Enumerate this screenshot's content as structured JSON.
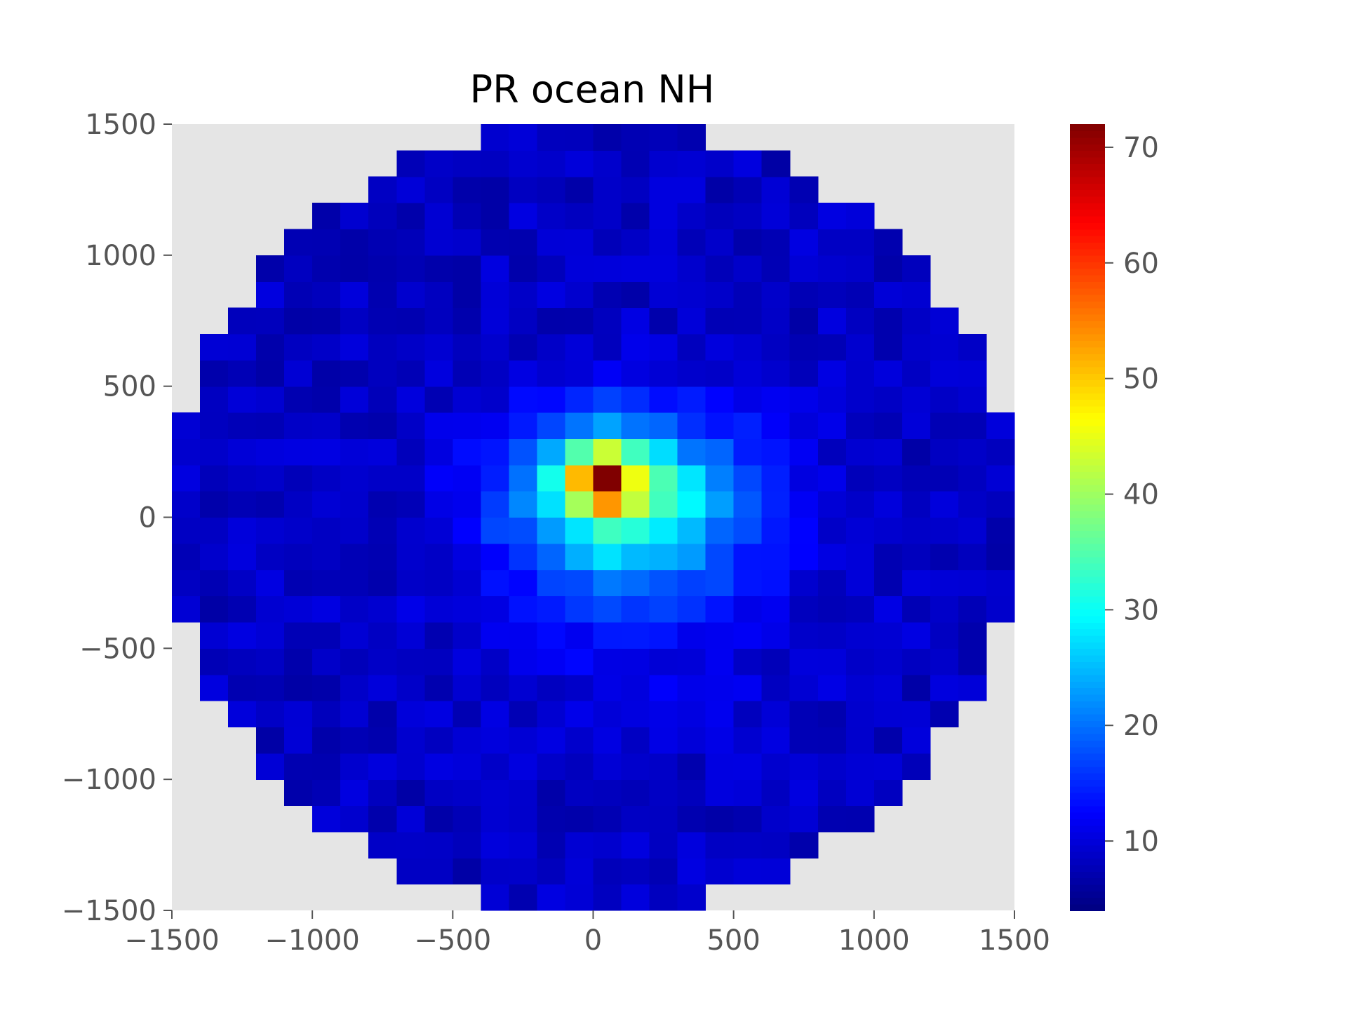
{
  "chart_data": {
    "type": "heatmap",
    "title": "PR ocean NH",
    "xlabel": "",
    "ylabel": "",
    "xlim": [
      -1500,
      1500
    ],
    "ylim": [
      -1500,
      1500
    ],
    "x_ticks": [
      -1500,
      -1000,
      -500,
      0,
      500,
      1000,
      1500
    ],
    "x_tick_labels": [
      "−1500",
      "−1000",
      "−500",
      "0",
      "500",
      "1000",
      "1500"
    ],
    "y_ticks": [
      -1500,
      -1000,
      -500,
      0,
      500,
      1000,
      1500
    ],
    "y_tick_labels": [
      "−1500",
      "−1000",
      "−500",
      "0",
      "500",
      "1000",
      "1500"
    ],
    "bin_size": 100,
    "domain_radius": 1500,
    "colormap": "jet",
    "colorbar": {
      "vmin": 4,
      "vmax": 72,
      "ticks": [
        10,
        20,
        30,
        40,
        50,
        60,
        70
      ],
      "tick_labels": [
        "10",
        "20",
        "30",
        "40",
        "50",
        "60",
        "70"
      ]
    },
    "background_color": "#e5e5e5",
    "grid": false,
    "peak": {
      "x": 50,
      "y": 150,
      "value": 72
    },
    "field_description": "Values are per 100x100 bins within a circle of radius 1500, centered at origin; background ~9, strong maximum near (50,150)."
  }
}
